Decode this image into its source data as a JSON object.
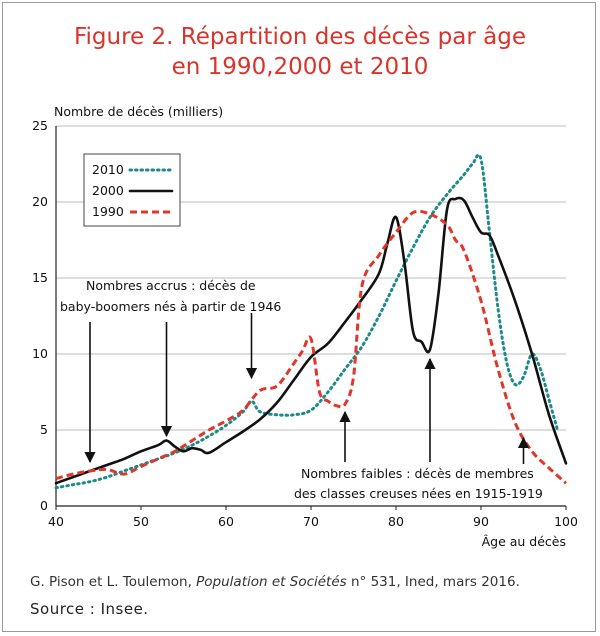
{
  "title_line1": "Figure 2. Répartition des décès par âge",
  "title_line2": "en 1990,2000 et 2010",
  "credit_author": "G. Pison et L. Toulemon, ",
  "credit_journal": "Population et Sociétés",
  "credit_rest": " n° 531, Ined, mars 2016.",
  "source": "Source : Insee.",
  "colors": {
    "title": "#d9342b",
    "s2010": "#1f8a8a",
    "s2000": "#111111",
    "s1990": "#e0362b"
  },
  "chart_data": {
    "type": "line",
    "title": "Figure 2. Répartition des décès par âge en 1990,2000 et 2010",
    "xlabel": "Âge au décès",
    "ylabel": "Nombre de décès (milliers)",
    "xlim": [
      40,
      100
    ],
    "ylim": [
      0,
      25
    ],
    "xticks": [
      40,
      50,
      60,
      70,
      80,
      90,
      100
    ],
    "yticks": [
      0,
      5,
      10,
      15,
      20,
      25
    ],
    "grid": "horizontal",
    "legend_position": "top-left",
    "series": [
      {
        "name": "2010",
        "style": "dotted",
        "x": [
          40,
          42,
          44,
          46,
          48,
          50,
          52,
          54,
          56,
          58,
          60,
          62,
          63,
          64,
          66,
          68,
          70,
          72,
          74,
          76,
          78,
          80,
          82,
          84,
          86,
          88,
          89,
          90,
          91,
          92,
          93,
          94,
          95,
          96,
          97,
          98,
          99
        ],
        "y": [
          1.2,
          1.4,
          1.6,
          1.9,
          2.3,
          2.7,
          3.1,
          3.5,
          4.0,
          4.6,
          5.3,
          6.2,
          6.9,
          6.2,
          6.0,
          6.0,
          6.3,
          7.5,
          9.0,
          10.5,
          12.5,
          14.8,
          17.0,
          19.0,
          20.5,
          21.8,
          22.5,
          22.8,
          18.0,
          13.0,
          9.5,
          8.0,
          8.5,
          10.0,
          9.0,
          7.0,
          5.0
        ]
      },
      {
        "name": "2000",
        "style": "solid",
        "x": [
          40,
          42,
          44,
          46,
          48,
          50,
          52,
          53,
          54,
          55,
          56,
          57,
          58,
          60,
          62,
          64,
          66,
          68,
          70,
          72,
          74,
          76,
          78,
          79,
          80,
          81,
          82,
          83,
          84,
          85,
          86,
          87,
          88,
          89,
          90,
          91,
          92,
          94,
          96,
          98,
          100
        ],
        "y": [
          1.5,
          1.9,
          2.3,
          2.7,
          3.1,
          3.6,
          4.0,
          4.3,
          3.9,
          3.6,
          3.8,
          3.7,
          3.5,
          4.2,
          4.9,
          5.7,
          6.8,
          8.3,
          9.8,
          10.7,
          12.1,
          13.6,
          15.3,
          17.3,
          19.0,
          16.0,
          11.5,
          10.8,
          10.3,
          14.0,
          19.5,
          20.2,
          20.1,
          19.0,
          18.0,
          17.8,
          16.5,
          13.5,
          10.0,
          6.0,
          2.8
        ]
      },
      {
        "name": "1990",
        "style": "dashed",
        "x": [
          40,
          42,
          44,
          46,
          48,
          50,
          52,
          54,
          56,
          58,
          60,
          62,
          64,
          66,
          68,
          69,
          70,
          71,
          72,
          73,
          74,
          75,
          76,
          78,
          80,
          82,
          84,
          86,
          87,
          88,
          90,
          92,
          94,
          96,
          98,
          100
        ],
        "y": [
          1.8,
          2.1,
          2.3,
          2.4,
          2.1,
          2.6,
          3.1,
          3.6,
          4.3,
          5.0,
          5.6,
          6.3,
          7.6,
          7.9,
          9.4,
          10.2,
          11.0,
          7.5,
          6.9,
          6.6,
          6.7,
          8.5,
          14.5,
          16.5,
          18.0,
          19.3,
          19.2,
          18.5,
          17.5,
          16.8,
          13.5,
          9.0,
          5.5,
          3.6,
          2.5,
          1.5
        ]
      }
    ],
    "annotations": [
      {
        "lines": [
          "Nombres accrus : décès de",
          "baby-boomers nés à partir de 1946"
        ],
        "arrows_to_x": [
          44,
          53,
          63
        ]
      },
      {
        "lines": [
          "Nombres faibles : décès de membres",
          "des classes creuses nées en 1915-1919"
        ],
        "arrows_to_x": [
          74,
          84,
          95
        ]
      }
    ]
  }
}
